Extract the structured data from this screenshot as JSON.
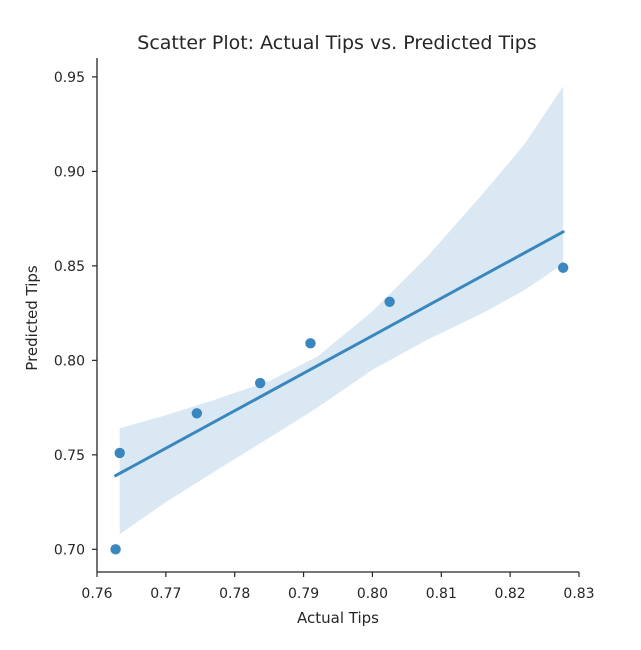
{
  "chart_data": {
    "type": "scatter",
    "title": "Scatter Plot: Actual Tips vs. Predicted Tips",
    "xlabel": "Actual Tips",
    "ylabel": "Predicted Tips",
    "xlim": [
      0.76,
      0.83
    ],
    "ylim": [
      0.688,
      0.96
    ],
    "xticks": [
      0.76,
      0.77,
      0.78,
      0.79,
      0.8,
      0.81,
      0.82,
      0.83
    ],
    "xtick_labels": [
      "0.76",
      "0.77",
      "0.78",
      "0.79",
      "0.80",
      "0.81",
      "0.82",
      "0.83"
    ],
    "yticks": [
      0.7,
      0.75,
      0.8,
      0.85,
      0.9,
      0.95
    ],
    "ytick_labels": [
      "0.70",
      "0.75",
      "0.80",
      "0.85",
      "0.90",
      "0.95"
    ],
    "grid": false,
    "points": [
      {
        "x": 0.7627,
        "y": 0.7
      },
      {
        "x": 0.7633,
        "y": 0.751
      },
      {
        "x": 0.7745,
        "y": 0.772
      },
      {
        "x": 0.7837,
        "y": 0.788
      },
      {
        "x": 0.791,
        "y": 0.809
      },
      {
        "x": 0.8025,
        "y": 0.831
      },
      {
        "x": 0.8277,
        "y": 0.849
      }
    ],
    "regression_line": {
      "x": [
        0.7627,
        0.8277
      ],
      "y": [
        0.739,
        0.868
      ]
    },
    "confidence_band": {
      "x": [
        0.7633,
        0.77,
        0.777,
        0.785,
        0.792,
        0.8,
        0.808,
        0.816,
        0.822,
        0.8277
      ],
      "upper": [
        0.764,
        0.771,
        0.779,
        0.789,
        0.802,
        0.826,
        0.855,
        0.888,
        0.914,
        0.945
      ],
      "lower": [
        0.708,
        0.725,
        0.741,
        0.759,
        0.775,
        0.795,
        0.811,
        0.825,
        0.837,
        0.851
      ]
    },
    "colors": {
      "series": "#3a87c0",
      "band": "#dae8f4",
      "axis": "#262626",
      "background": "#ffffff"
    }
  }
}
